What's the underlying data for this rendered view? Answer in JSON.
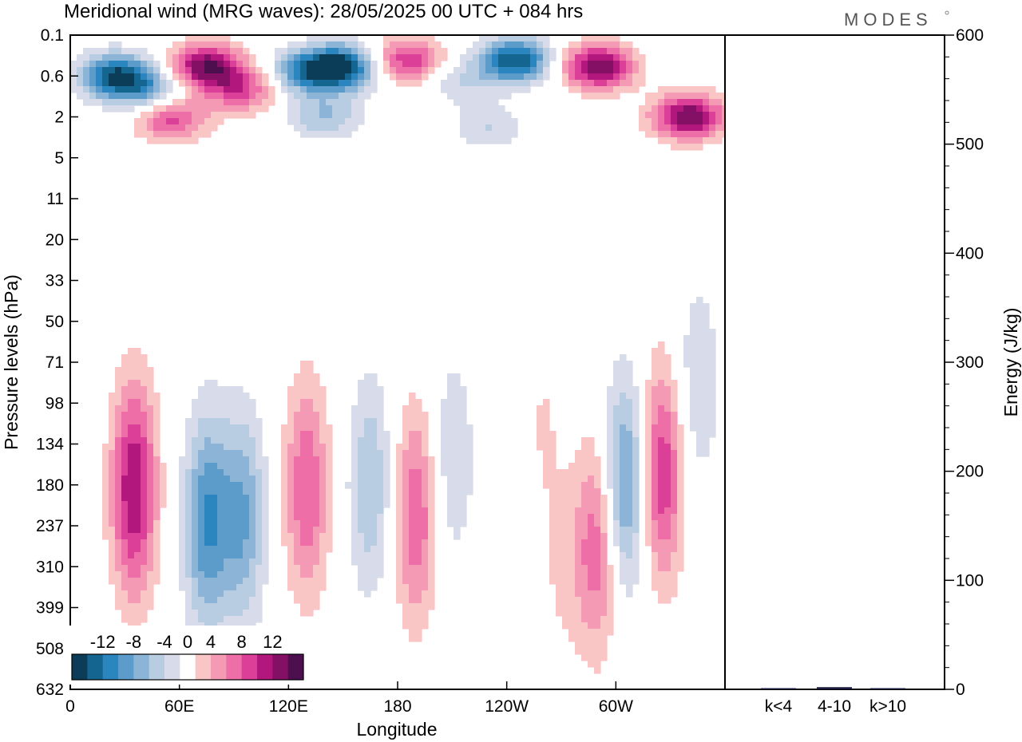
{
  "header": {
    "title": "Meridional wind (MRG waves):  28/05/2025  00 UTC  + 084 hrs",
    "brand": "MODES"
  },
  "chart_data": [
    {
      "type": "heatmap",
      "title": "Meridional wind (MRG waves):  28/05/2025  00 UTC  + 084 hrs",
      "xlabel": "Longitude",
      "ylabel": "Pressure levels (hPa)",
      "x_ticks": [
        "0",
        "60E",
        "120E",
        "180",
        "120W",
        "60W"
      ],
      "x_tick_degrees": [
        0,
        60,
        120,
        180,
        240,
        300
      ],
      "x_range": [
        0,
        360
      ],
      "y_ticks": [
        "0.1",
        "0.6",
        "2",
        "5",
        "11",
        "20",
        "33",
        "50",
        "71",
        "98",
        "134",
        "180",
        "237",
        "310",
        "399",
        "508",
        "632"
      ],
      "y_scale": "model levels (top 0.1 hPa, bottom 632 hPa)",
      "colorbar": {
        "tick_labels": [
          "-12",
          "-8",
          "-4",
          "0",
          "4",
          "8",
          "12"
        ],
        "levels": [
          -14,
          -12,
          -10,
          -8,
          -6,
          -4,
          -2,
          2,
          4,
          6,
          8,
          10,
          12,
          14
        ],
        "colors": [
          "#0b3d58",
          "#14658f",
          "#2b86bf",
          "#5c9ccb",
          "#8bb4d6",
          "#b9cde2",
          "#d8dbe9",
          "#ffffff",
          "#f9c5c5",
          "#f59ab5",
          "#ee6fa8",
          "#db3f98",
          "#b2177e",
          "#831065",
          "#4e0f4e"
        ],
        "placement": "bottom-left"
      },
      "blobs": [
        {
          "lon": 25,
          "level": 0.6,
          "value": -14
        },
        {
          "lon": 45,
          "level": 1.0,
          "value": -8
        },
        {
          "lon": 75,
          "level": 0.4,
          "value": 14
        },
        {
          "lon": 95,
          "level": 0.9,
          "value": 8
        },
        {
          "lon": 130,
          "level": 0.5,
          "value": -10
        },
        {
          "lon": 150,
          "level": 0.4,
          "value": -14
        },
        {
          "lon": 185,
          "level": 0.3,
          "value": 10
        },
        {
          "lon": 215,
          "level": 0.7,
          "value": -4
        },
        {
          "lon": 245,
          "level": 0.3,
          "value": -14
        },
        {
          "lon": 290,
          "level": 0.4,
          "value": 14
        },
        {
          "lon": 340,
          "level": 2.0,
          "value": 14
        },
        {
          "lon": 55,
          "level": 2.0,
          "value": 10
        },
        {
          "lon": 140,
          "level": 2.0,
          "value": -6
        },
        {
          "lon": 230,
          "level": 2.5,
          "value": -4
        },
        {
          "lon": 100,
          "level": 5.5,
          "value": 2
        },
        {
          "lon": 35,
          "level": 185,
          "value": 12
        },
        {
          "lon": 75,
          "level": 230,
          "value": -10
        },
        {
          "lon": 95,
          "level": 225,
          "value": -8
        },
        {
          "lon": 130,
          "level": 185,
          "value": 8
        },
        {
          "lon": 165,
          "level": 180,
          "value": -6
        },
        {
          "lon": 190,
          "level": 220,
          "value": 8
        },
        {
          "lon": 210,
          "level": 150,
          "value": -4
        },
        {
          "lon": 290,
          "level": 270,
          "value": 8
        },
        {
          "lon": 305,
          "level": 180,
          "value": -10
        },
        {
          "lon": 325,
          "level": 165,
          "value": 10
        },
        {
          "lon": 270,
          "level": 320,
          "value": 2
        },
        {
          "lon": 260,
          "level": 110,
          "value": 2
        },
        {
          "lon": 345,
          "level": 85,
          "value": -4
        }
      ]
    },
    {
      "type": "bar",
      "categories": [
        "k<4",
        "4-10",
        "k>10"
      ],
      "values": [
        0.5,
        2,
        0.3
      ],
      "ylabel": "Energy (J/kg)",
      "ylim": [
        0,
        600
      ],
      "y_ticks": [
        0,
        100,
        200,
        300,
        400,
        500,
        600
      ],
      "bar_color": "#1a1a40"
    }
  ]
}
